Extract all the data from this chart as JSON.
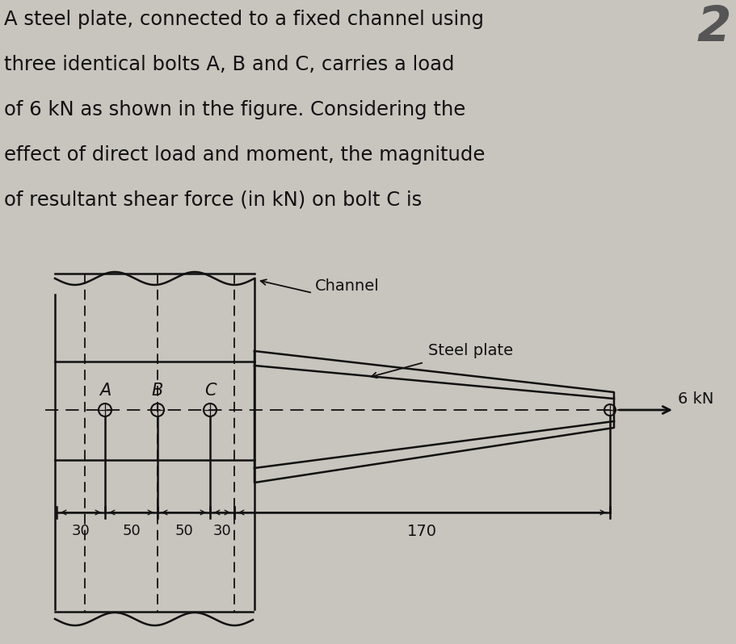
{
  "bg_color": "#c8c4be",
  "text_color": "#111111",
  "title_lines": [
    "A steel plate, connected to a fixed channel using",
    "three identical bolts A, B and C, carries a load",
    "of 6 kN as shown in the figure. Considering the",
    "effect of direct load and moment, the magnitude",
    "of resultant shear force (in kN) on bolt C is"
  ],
  "title_fontsize": 17.5,
  "channel_label": "Channel",
  "steel_plate_label": "Steel plate",
  "bolt_labels": [
    "A",
    "B",
    "C"
  ],
  "dim_labels": [
    "30",
    "50",
    "50",
    "30"
  ],
  "dim_170": "170",
  "force_label": "6 kN",
  "corner_number": "2",
  "lw": 1.8
}
